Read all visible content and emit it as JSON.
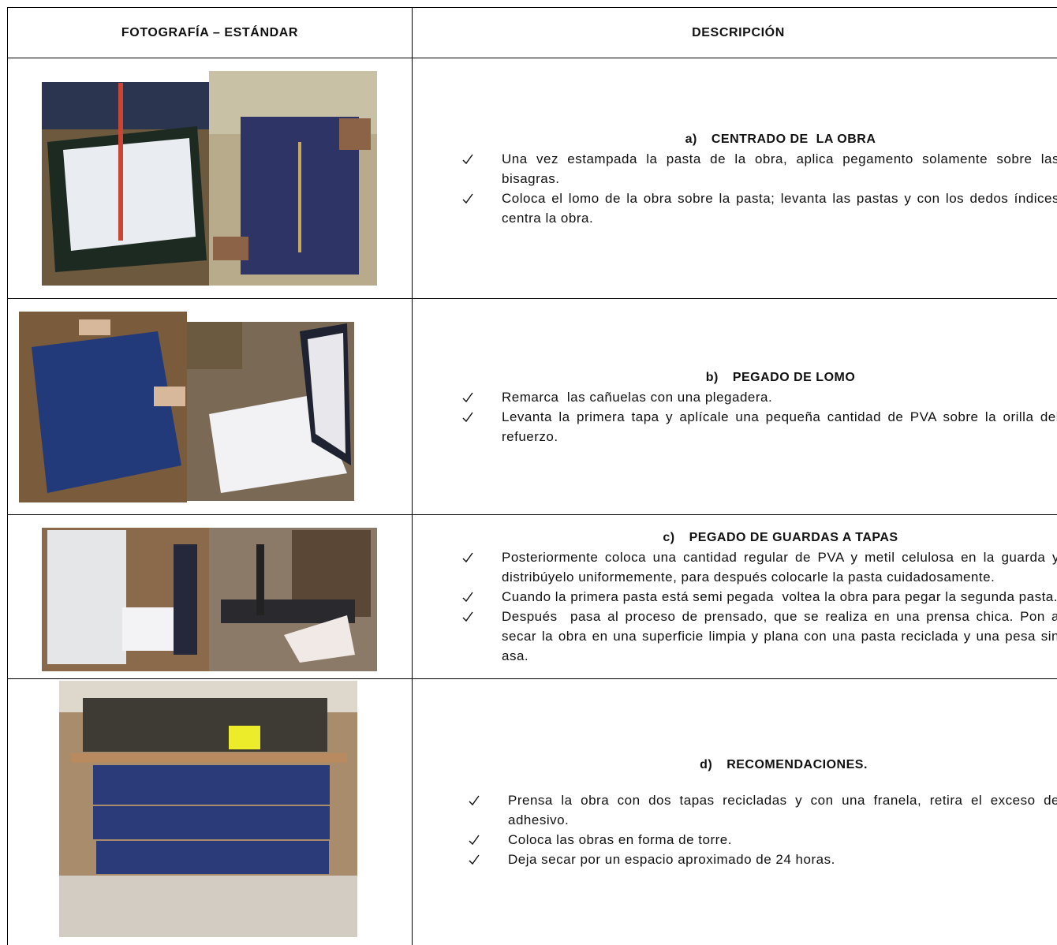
{
  "table": {
    "headers": [
      "FOTOGRAFÍA – ESTÁNDAR",
      "DESCRIPCIÓN"
    ],
    "rows": [
      {
        "label": "a)",
        "title": "CENTRADO DE  LA OBRA",
        "items": [
          "Una vez estampada la pasta de la obra, aplica pegamento solamente sobre las bisagras.",
          "Coloca el lomo de la obra sobre la pasta; levanta las pastas y con los dedos índices centra la obra."
        ]
      },
      {
        "label": "b)",
        "title": "PEGADO DE LOMO",
        "items": [
          "Remarca  las cañuelas con una plegadera.",
          "Levanta la primera tapa y aplícale una pequeña cantidad de PVA sobre la orilla del refuerzo."
        ]
      },
      {
        "label": "c)",
        "title": "PEGADO DE GUARDAS A TAPAS",
        "items": [
          "Posteriormente coloca una cantidad regular de PVA y metil celulosa en la guarda y distribúyelo uniformemente, para después colocarle la pasta cuidadosamente.",
          "Cuando la primera pasta está semi pegada  voltea la obra para pegar la segunda pasta.",
          "Después  pasa al proceso de prensado, que se realiza en una prensa chica. Pon a secar la obra en una superficie limpia y plana con una pasta reciclada y una pesa sin asa."
        ]
      },
      {
        "label": "d)",
        "title": "RECOMENDACIONES.",
        "items": [
          "Prensa la obra con dos tapas recicladas y con una franela, retira el exceso de adhesivo.",
          "Coloca las obras en forma de torre.",
          "Deja secar por un espacio aproximado de 24 horas."
        ]
      }
    ]
  }
}
